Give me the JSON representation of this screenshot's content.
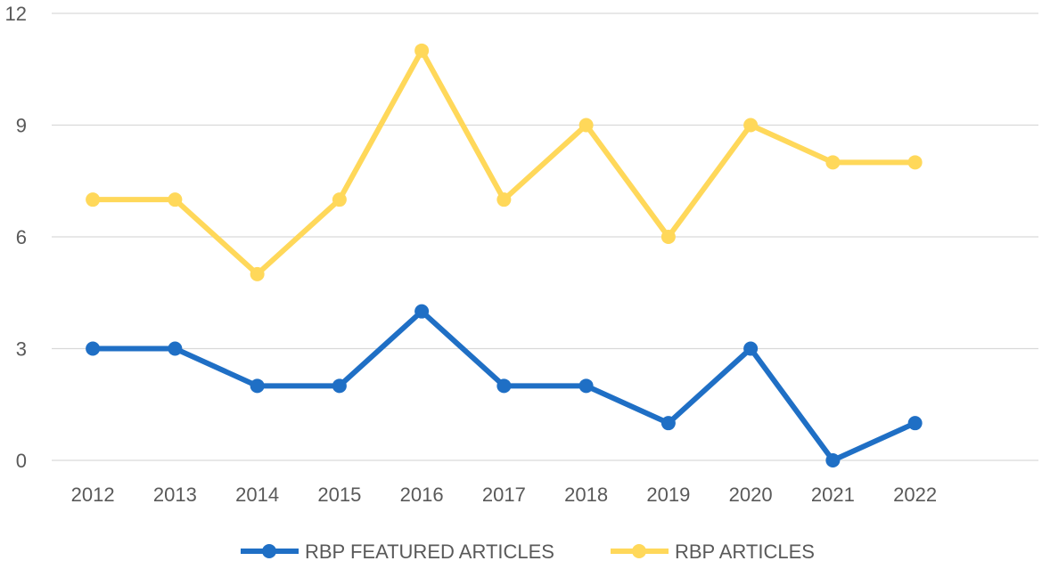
{
  "chart_data": {
    "type": "line",
    "title": "",
    "xlabel": "",
    "ylabel": "",
    "categories": [
      "2012",
      "2013",
      "2014",
      "2015",
      "2016",
      "2017",
      "2018",
      "2019",
      "2020",
      "2021",
      "2022"
    ],
    "ylim": [
      0,
      12
    ],
    "yticks": [
      "0",
      "3",
      "6",
      "9",
      "12"
    ],
    "grid": true,
    "legend_position": "bottom",
    "series": [
      {
        "name": "RBP FEATURED ARTICLES",
        "color": "#1f6fc5",
        "values": [
          3,
          3,
          2,
          2,
          4,
          2,
          2,
          1,
          3,
          0,
          1
        ]
      },
      {
        "name": "RBP ARTICLES",
        "color": "#ffd85a",
        "values": [
          7,
          7,
          5,
          7,
          11,
          7,
          9,
          6,
          9,
          8,
          8
        ]
      }
    ]
  }
}
